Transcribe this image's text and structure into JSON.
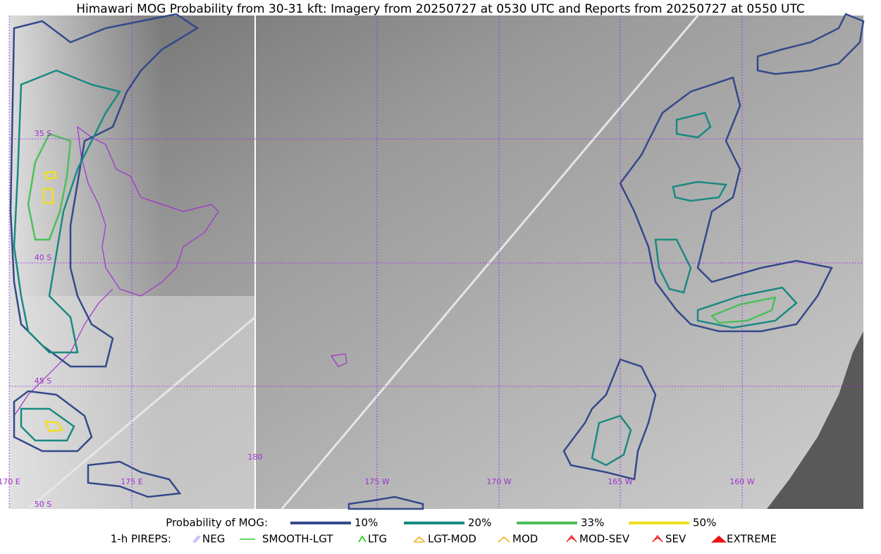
{
  "title": "Himawari MOG Probability from 30-31 kft: Imagery from 20250727 at 0530 UTC and Reports from 20250727 at 0550 UTC",
  "latitude_labels": [
    "35 S",
    "40 S",
    "45 S",
    "50 S"
  ],
  "longitude_labels": [
    "170 E",
    "175 E",
    "180",
    "175 W",
    "170 W",
    "165 W",
    "160 W"
  ],
  "probability_legend": {
    "label": "Probability of MOG:",
    "entries": [
      {
        "name": "10%",
        "color": "#34498a"
      },
      {
        "name": "20%",
        "color": "#1a8a80"
      },
      {
        "name": "33%",
        "color": "#4cc05a"
      },
      {
        "name": "50%",
        "color": "#f0e020"
      }
    ]
  },
  "pirep_legend": {
    "label": "1-h PIREPS:",
    "entries": [
      {
        "name": "NEG",
        "color": "#b0b0ff"
      },
      {
        "name": "SMOOTH-LGT",
        "color": "#30d030"
      },
      {
        "name": "LTG",
        "color": "#10d010"
      },
      {
        "name": "LGT-MOD",
        "color": "#f0b020"
      },
      {
        "name": "MOD",
        "color": "#f0b020"
      },
      {
        "name": "MOD-SEV",
        "color": "#f03030"
      },
      {
        "name": "SEV",
        "color": "#f03030"
      },
      {
        "name": "EXTREME",
        "color": "#f01010"
      }
    ]
  }
}
